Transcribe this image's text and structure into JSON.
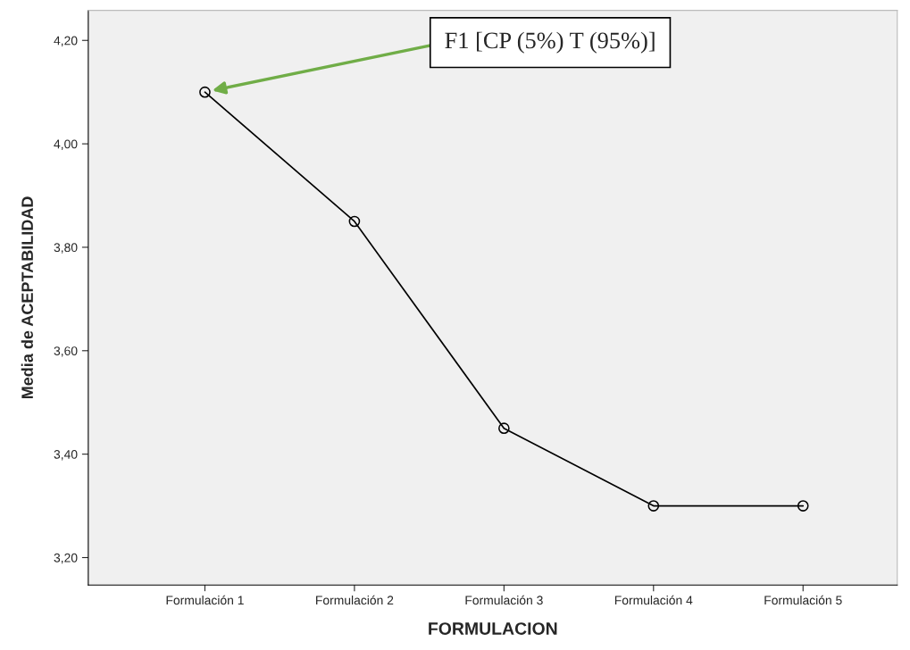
{
  "chart_data": {
    "type": "line",
    "xlabel": "FORMULACION",
    "ylabel": "Media de ACEPTABILIDAD",
    "categories": [
      "Formulación 1",
      "Formulación 2",
      "Formulación 3",
      "Formulación 4",
      "Formulación 5"
    ],
    "series": [
      {
        "color": "#000000",
        "values": [
          4.1,
          3.85,
          3.45,
          3.3,
          3.3
        ]
      }
    ],
    "ylim": [
      3.147,
      4.258
    ],
    "yticks": [
      {
        "value": 3.2,
        "label": "3,20"
      },
      {
        "value": 3.4,
        "label": "3,40"
      },
      {
        "value": 3.6,
        "label": "3,60"
      },
      {
        "value": 3.8,
        "label": "3,80"
      },
      {
        "value": 4.0,
        "label": "4,00"
      },
      {
        "value": 4.2,
        "label": "4,20"
      }
    ],
    "marker": "circle",
    "grid": false,
    "legend": false,
    "annotations": [
      "F1 [CP (5%) T (95%)]"
    ]
  }
}
